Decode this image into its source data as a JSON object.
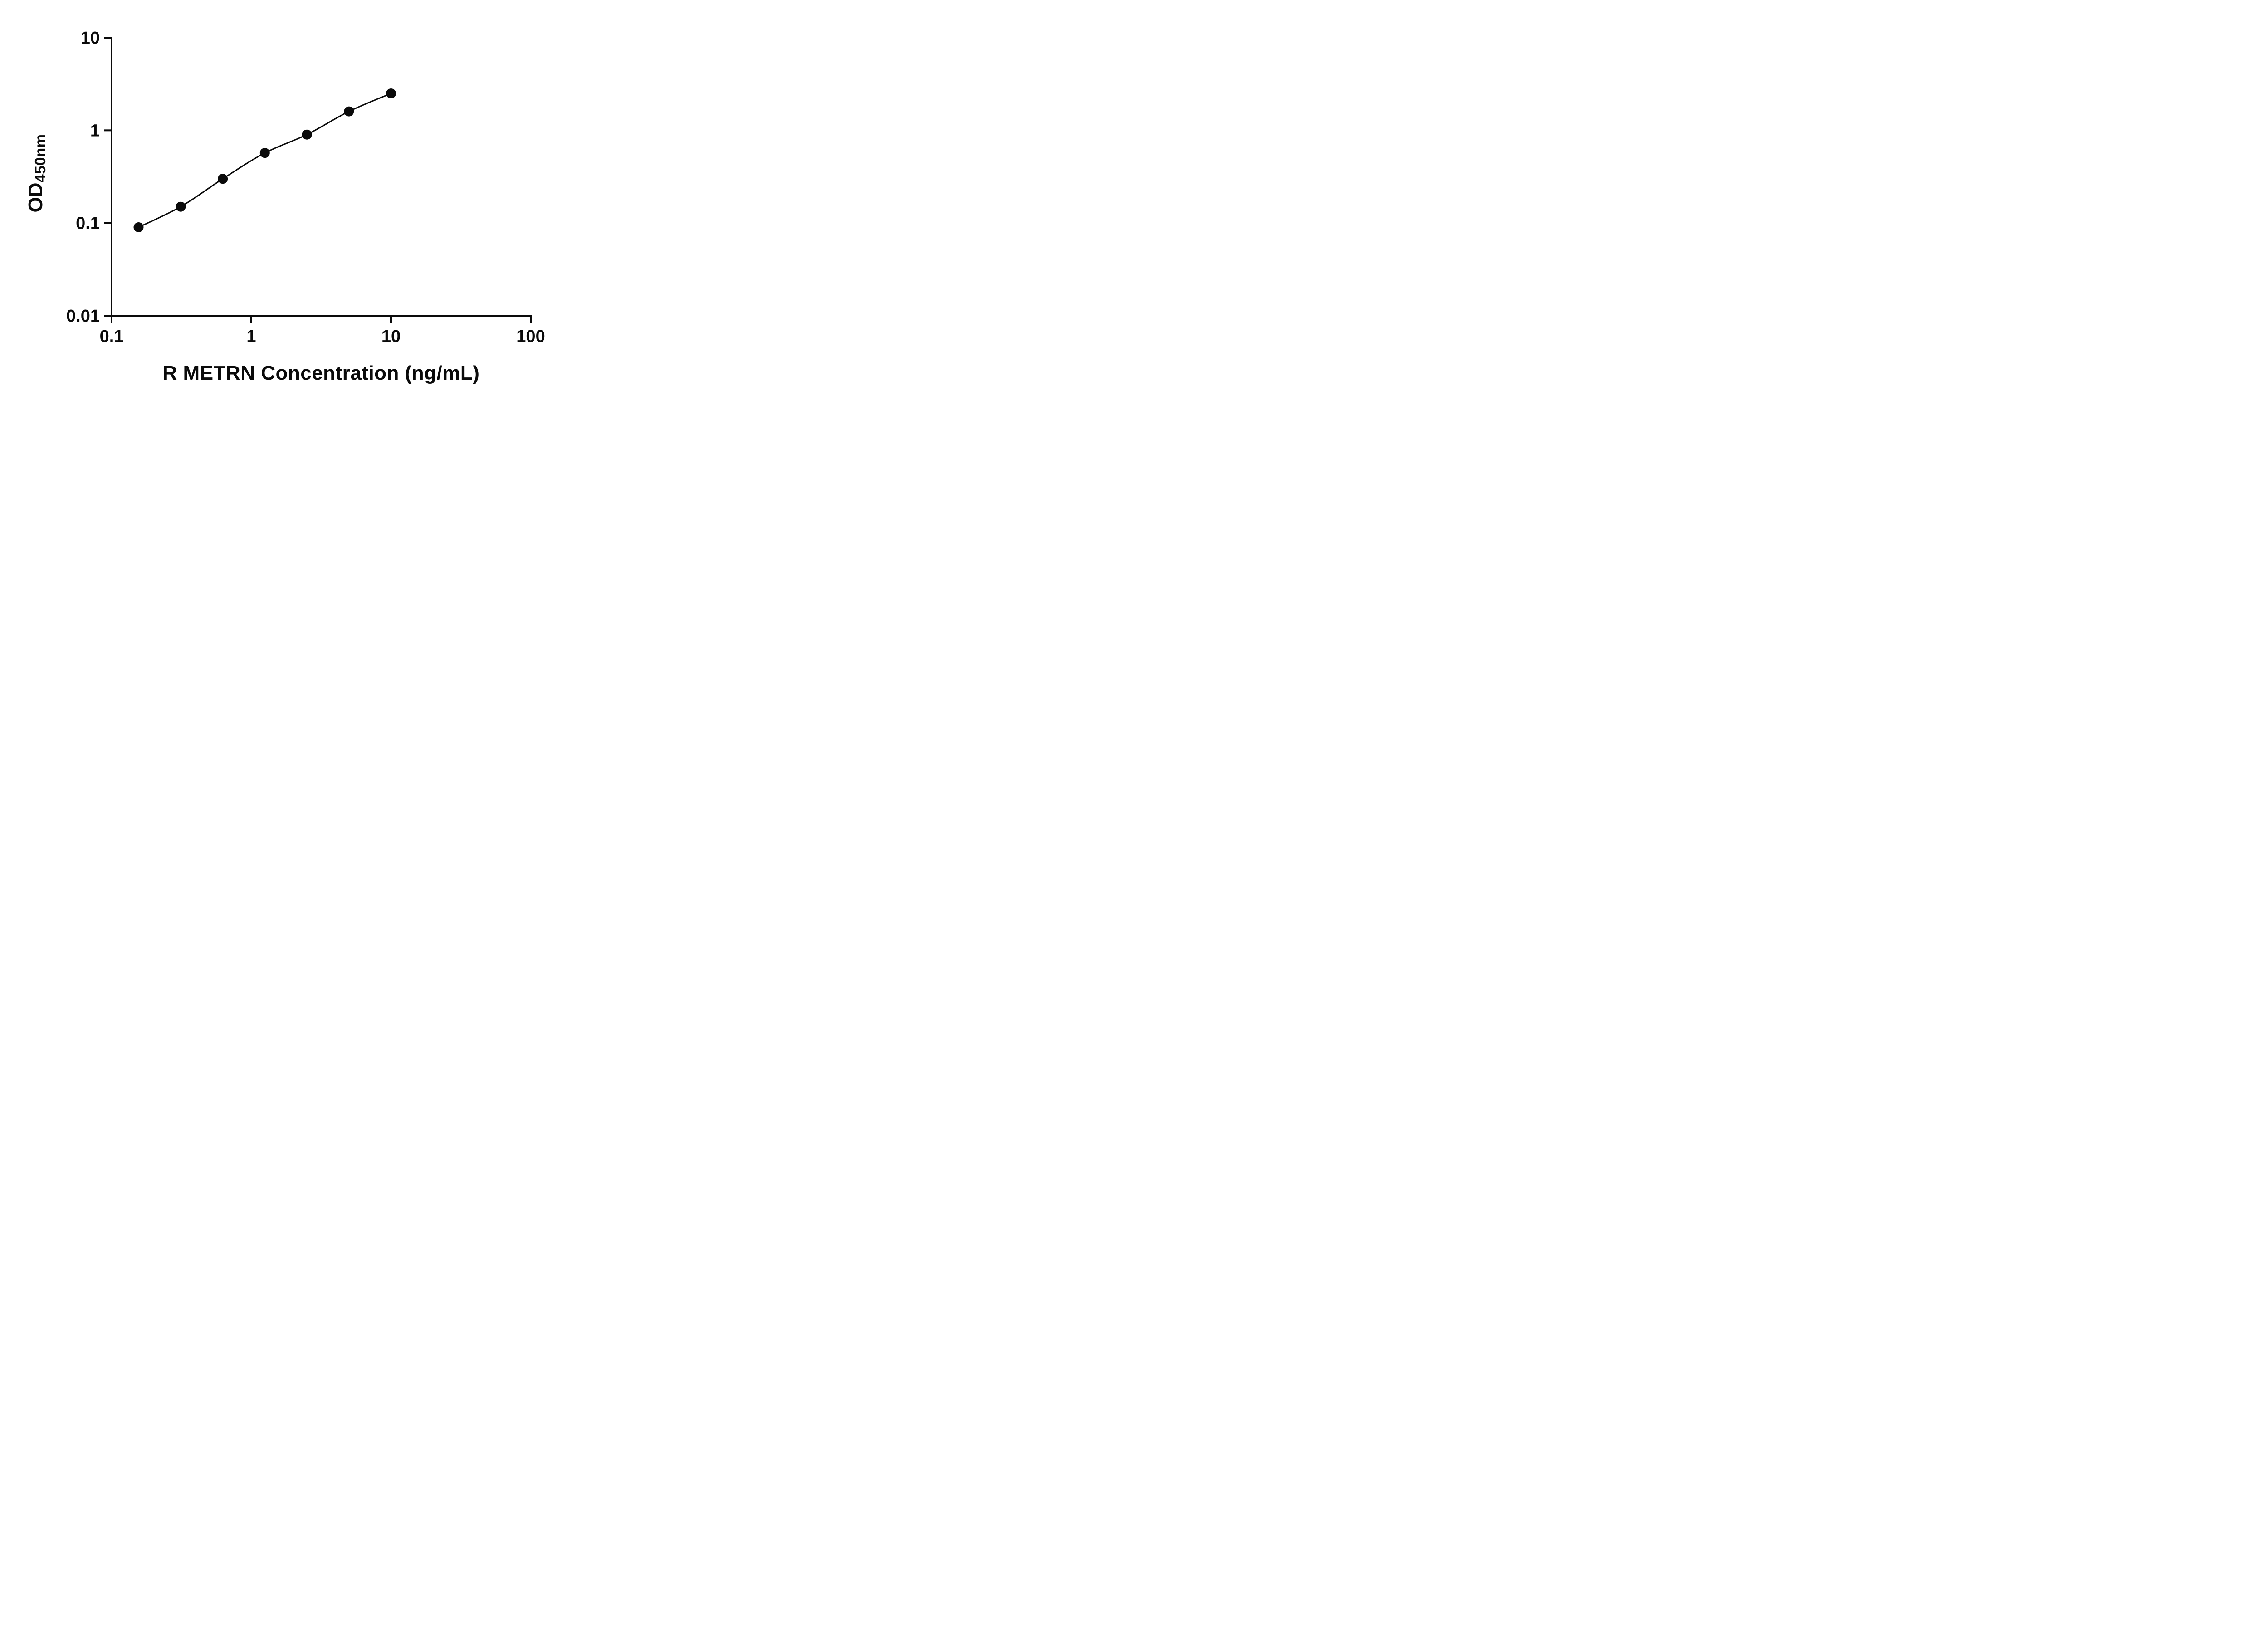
{
  "chart_data": {
    "type": "scatter",
    "xlabel": "R METRN Concentration (ng/mL)",
    "ylabel_main": "OD",
    "ylabel_sub": "450nm",
    "x_scale": "log10",
    "y_scale": "log10",
    "xlim": [
      0.1,
      100
    ],
    "ylim": [
      0.01,
      10
    ],
    "x_ticks": [
      0.1,
      1,
      10,
      100
    ],
    "x_tick_labels": [
      "0.1",
      "1",
      "10",
      "100"
    ],
    "y_ticks": [
      0.01,
      0.1,
      1,
      10
    ],
    "y_tick_labels": [
      "0.01",
      "0.1",
      "1",
      "10"
    ],
    "series": [
      {
        "marker": "filled-circle",
        "line": "smooth",
        "points": [
          {
            "x": 0.156,
            "y": 0.09
          },
          {
            "x": 0.3125,
            "y": 0.15
          },
          {
            "x": 0.625,
            "y": 0.3
          },
          {
            "x": 1.25,
            "y": 0.57
          },
          {
            "x": 2.5,
            "y": 0.9
          },
          {
            "x": 5,
            "y": 1.6
          },
          {
            "x": 10,
            "y": 2.5
          }
        ]
      }
    ],
    "grid": false,
    "legend": null,
    "axis_color": "#0a0a0a",
    "line_color": "#0a0a0a",
    "marker_color": "#0a0a0a",
    "background_color": "#ffffff"
  }
}
